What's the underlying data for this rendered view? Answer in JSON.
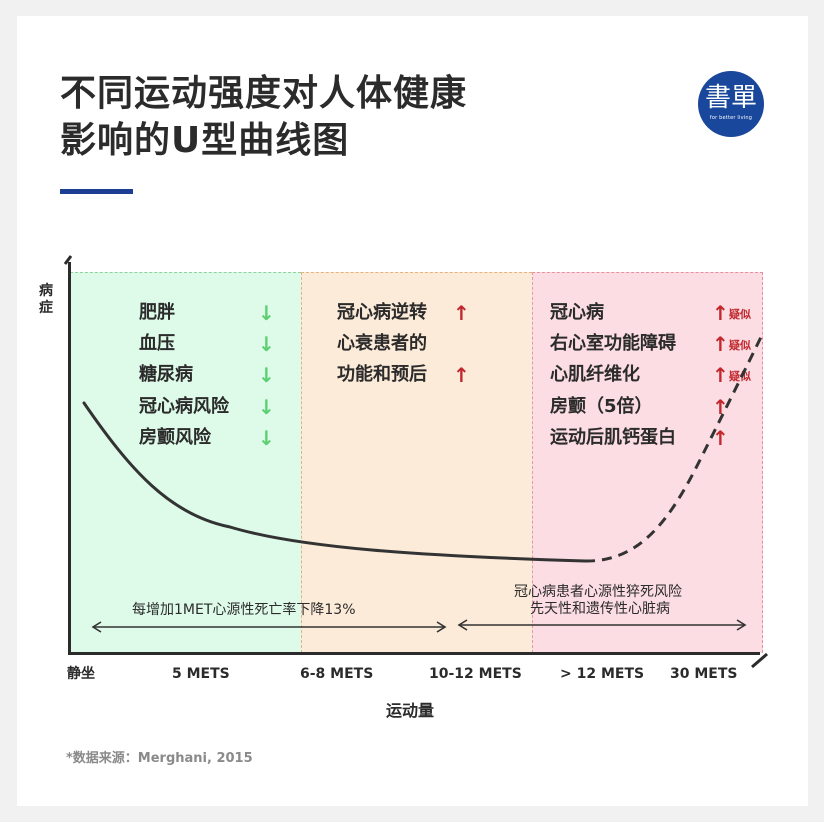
{
  "title": {
    "line1": "不同运动强度对人体健康",
    "line2": "影响的U型曲线图"
  },
  "logo": {
    "main": "書單",
    "sub": "for better living"
  },
  "axes": {
    "ylabel": "病症",
    "xlabel": "运动量",
    "ticks": [
      "静坐",
      "5 METS",
      "6-8 METS",
      "10-12 METS",
      "> 12 METS",
      "30 METS"
    ]
  },
  "zones": {
    "green": {
      "color": "#defbe9",
      "items": [
        {
          "label": "肥胖",
          "trend": "↓"
        },
        {
          "label": "血压",
          "trend": "↓"
        },
        {
          "label": "糖尿病",
          "trend": "↓"
        },
        {
          "label": "冠心病风险",
          "trend": "↓"
        },
        {
          "label": "房颤风险",
          "trend": "↓"
        }
      ]
    },
    "orange": {
      "color": "#fcebd9",
      "items": [
        {
          "label": "冠心病逆转",
          "trend": "↑"
        },
        {
          "label": "心衰患者的",
          "trend": ""
        },
        {
          "label": "功能和预后",
          "trend": "↑"
        }
      ]
    },
    "pink": {
      "color": "#fbdde3",
      "items": [
        {
          "label": "冠心病",
          "trend": "↑",
          "note": "疑似"
        },
        {
          "label": "右心室功能障碍",
          "trend": "↑",
          "note": "疑似"
        },
        {
          "label": "心肌纤维化",
          "trend": "↑",
          "note": "疑似"
        },
        {
          "label": "房颤（5倍）",
          "trend": "↑",
          "note": ""
        },
        {
          "label": "运动后肌钙蛋白",
          "trend": "↑",
          "note": ""
        }
      ]
    }
  },
  "annotations": {
    "left": "每增加1MET心源性死亡率下降13%",
    "right_line1": "冠心病患者心源性猝死风险",
    "right_line2": "先天性和遗传性心脏病"
  },
  "source": "*数据来源：Merghani, 2015",
  "colors": {
    "accent": "#1c3f94",
    "down_arrow": "#5ccf72",
    "up_arrow": "#c1272d"
  }
}
